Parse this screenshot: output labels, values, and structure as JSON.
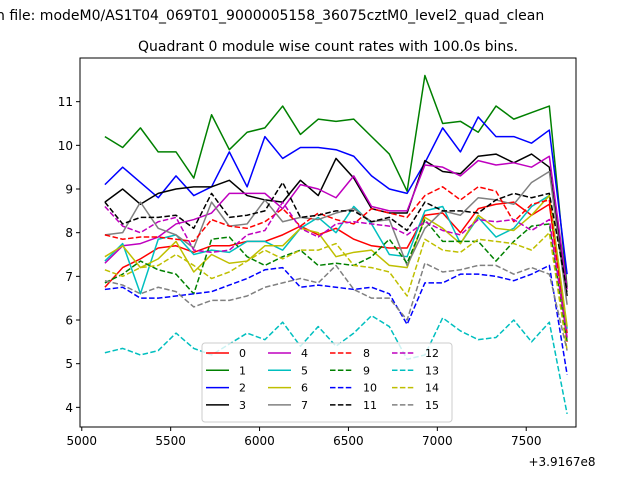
{
  "chart_data": {
    "type": "line",
    "suptitle": "n file: modeM0/AS1T04_069T01_9000005158_36075cztM0_level2_quad_clean",
    "title": "Quadrant 0 module wise count rates with 100.0s bins.",
    "xlabel": "",
    "ylabel": "",
    "xlim": [
      4990,
      7780
    ],
    "ylim": [
      3.55,
      12.0
    ],
    "x_offset_label": "+3.9167e8",
    "x_ticks": [
      5000,
      5500,
      6000,
      6500,
      7000,
      7500
    ],
    "x_tick_labels": [
      "5000",
      "5500",
      "6000",
      "6500",
      "7000",
      "7500"
    ],
    "y_ticks": [
      4,
      5,
      6,
      7,
      8,
      9,
      10,
      11
    ],
    "y_tick_labels": [
      "4",
      "5",
      "6",
      "7",
      "8",
      "9",
      "10",
      "11"
    ],
    "grid": false,
    "legend_location": "lower-center",
    "x": [
      5130,
      5230,
      5330,
      5430,
      5530,
      5630,
      5730,
      5830,
      5930,
      6030,
      6130,
      6230,
      6330,
      6430,
      6530,
      6630,
      6730,
      6830,
      6930,
      7030,
      7130,
      7230,
      7330,
      7430,
      7530,
      7630,
      7730
    ],
    "series": [
      {
        "name": "0",
        "color": "#ff0000",
        "dash": "solid",
        "values": [
          6.75,
          7.2,
          7.4,
          7.65,
          7.7,
          7.55,
          7.7,
          7.7,
          7.8,
          7.8,
          7.95,
          8.15,
          7.95,
          8.1,
          7.85,
          7.7,
          7.65,
          7.65,
          8.4,
          8.45,
          8.0,
          8.55,
          8.65,
          8.7,
          8.4,
          8.65,
          5.7
        ]
      },
      {
        "name": "1",
        "color": "#008000",
        "dash": "solid",
        "values": [
          10.2,
          9.95,
          10.4,
          9.85,
          9.85,
          9.25,
          10.7,
          9.9,
          10.3,
          10.4,
          10.9,
          10.25,
          10.6,
          10.55,
          10.6,
          10.2,
          9.8,
          8.95,
          11.6,
          10.5,
          10.55,
          10.3,
          10.9,
          10.6,
          10.75,
          10.9,
          6.75
        ]
      },
      {
        "name": "2",
        "color": "#0000ff",
        "dash": "solid",
        "values": [
          9.1,
          9.5,
          9.15,
          8.8,
          9.3,
          8.85,
          9.05,
          9.85,
          9.05,
          10.2,
          9.7,
          9.95,
          9.95,
          9.9,
          9.75,
          9.3,
          9.0,
          8.9,
          9.6,
          10.4,
          9.85,
          10.65,
          10.2,
          10.2,
          10.05,
          10.35,
          7.05
        ]
      },
      {
        "name": "3",
        "color": "#000000",
        "dash": "solid",
        "values": [
          8.7,
          9.0,
          8.65,
          8.9,
          9.0,
          9.05,
          9.05,
          9.2,
          8.85,
          8.75,
          8.7,
          9.2,
          8.85,
          9.7,
          9.25,
          8.55,
          8.45,
          8.45,
          9.65,
          9.4,
          9.35,
          9.75,
          9.8,
          9.6,
          9.8,
          9.5,
          6.55
        ]
      },
      {
        "name": "4",
        "color": "#bf00bf",
        "dash": "solid",
        "values": [
          7.3,
          7.7,
          7.75,
          7.9,
          8.2,
          8.3,
          8.45,
          8.9,
          8.9,
          8.9,
          8.55,
          9.1,
          9.0,
          8.8,
          9.3,
          8.6,
          8.5,
          8.5,
          9.55,
          9.5,
          9.3,
          9.65,
          9.55,
          9.6,
          9.5,
          9.75,
          6.7
        ]
      },
      {
        "name": "5",
        "color": "#00bfbf",
        "dash": "solid",
        "values": [
          7.35,
          7.75,
          6.6,
          7.85,
          7.95,
          7.5,
          7.6,
          7.55,
          7.8,
          7.8,
          7.6,
          8.1,
          8.35,
          8.0,
          8.6,
          8.2,
          7.5,
          7.45,
          8.5,
          8.6,
          7.75,
          8.35,
          7.9,
          8.1,
          8.6,
          8.85,
          5.8
        ]
      },
      {
        "name": "6",
        "color": "#bfbf00",
        "dash": "solid",
        "values": [
          7.45,
          7.7,
          7.2,
          7.4,
          7.8,
          7.1,
          7.5,
          7.3,
          7.35,
          7.7,
          7.7,
          8.1,
          8.0,
          7.45,
          7.55,
          7.6,
          7.25,
          7.2,
          8.35,
          8.1,
          7.75,
          8.4,
          8.1,
          8.05,
          8.4,
          8.85,
          5.85
        ]
      },
      {
        "name": "7",
        "color": "#808080",
        "dash": "solid",
        "values": [
          7.95,
          8.0,
          8.7,
          8.1,
          7.95,
          7.65,
          8.7,
          8.15,
          8.2,
          8.75,
          8.25,
          8.35,
          8.3,
          8.45,
          8.55,
          8.25,
          8.3,
          7.25,
          8.1,
          8.5,
          8.4,
          8.8,
          8.75,
          8.65,
          9.15,
          9.4,
          6.35
        ]
      },
      {
        "name": "8",
        "color": "#ff0000",
        "dash": "dashed",
        "values": [
          7.95,
          7.85,
          7.9,
          7.9,
          7.85,
          7.8,
          8.3,
          8.15,
          8.1,
          8.25,
          8.55,
          8.15,
          8.45,
          8.3,
          8.2,
          8.55,
          8.45,
          8.35,
          8.85,
          9.05,
          8.75,
          9.05,
          8.95,
          8.25,
          8.65,
          8.75,
          5.5
        ]
      },
      {
        "name": "9",
        "color": "#008000",
        "dash": "dashed",
        "values": [
          6.85,
          7.05,
          7.35,
          7.15,
          7.05,
          6.6,
          7.85,
          7.9,
          7.45,
          7.25,
          7.45,
          7.6,
          7.25,
          7.3,
          7.25,
          7.45,
          7.85,
          7.3,
          8.3,
          7.8,
          7.8,
          7.8,
          7.35,
          7.8,
          8.15,
          8.2,
          5.5
        ]
      },
      {
        "name": "10",
        "color": "#0000ff",
        "dash": "dashed",
        "values": [
          6.7,
          6.75,
          6.5,
          6.5,
          6.55,
          6.6,
          6.65,
          6.8,
          6.95,
          7.15,
          7.2,
          6.75,
          6.8,
          6.75,
          6.7,
          6.75,
          6.6,
          5.9,
          6.85,
          6.85,
          7.05,
          7.05,
          7.0,
          6.9,
          7.05,
          7.25,
          4.75
        ]
      },
      {
        "name": "11",
        "color": "#000000",
        "dash": "dashed",
        "values": [
          8.7,
          8.2,
          8.35,
          8.35,
          8.4,
          8.1,
          8.9,
          8.35,
          8.4,
          8.5,
          9.15,
          8.35,
          8.4,
          8.5,
          8.5,
          8.25,
          8.35,
          8.05,
          8.7,
          8.5,
          8.5,
          8.45,
          8.75,
          8.9,
          8.8,
          8.9,
          6.65
        ]
      },
      {
        "name": "12",
        "color": "#bf00bf",
        "dash": "dashed",
        "values": [
          8.6,
          8.15,
          8.0,
          8.25,
          8.35,
          7.6,
          7.55,
          7.6,
          7.95,
          8.05,
          8.7,
          8.1,
          7.9,
          8.2,
          8.25,
          8.2,
          8.15,
          7.95,
          8.25,
          8.05,
          7.95,
          8.3,
          8.25,
          8.3,
          8.05,
          8.3,
          5.6
        ]
      },
      {
        "name": "13",
        "color": "#00bfbf",
        "dash": "dashed",
        "values": [
          5.25,
          5.35,
          5.2,
          5.3,
          5.7,
          5.35,
          5.2,
          5.45,
          5.7,
          5.55,
          5.95,
          5.4,
          5.85,
          5.4,
          5.7,
          6.1,
          5.85,
          5.1,
          5.2,
          6.05,
          5.75,
          5.55,
          5.6,
          6.0,
          5.5,
          5.95,
          3.85
        ]
      },
      {
        "name": "14",
        "color": "#bfbf00",
        "dash": "dashed",
        "values": [
          7.15,
          7.0,
          7.2,
          7.25,
          7.5,
          7.25,
          6.95,
          7.1,
          7.35,
          7.6,
          7.4,
          7.6,
          7.6,
          7.75,
          7.25,
          7.2,
          7.1,
          6.55,
          7.85,
          7.6,
          7.55,
          7.85,
          7.8,
          7.75,
          7.6,
          8.0,
          5.3
        ]
      },
      {
        "name": "15",
        "color": "#808080",
        "dash": "dashed",
        "values": [
          6.9,
          6.8,
          6.6,
          6.75,
          6.65,
          6.3,
          6.45,
          6.45,
          6.55,
          6.75,
          6.85,
          6.95,
          6.85,
          7.25,
          6.7,
          6.5,
          6.5,
          6.0,
          7.3,
          7.1,
          7.15,
          7.25,
          7.25,
          7.05,
          7.2,
          7.05,
          5.3
        ]
      }
    ]
  }
}
